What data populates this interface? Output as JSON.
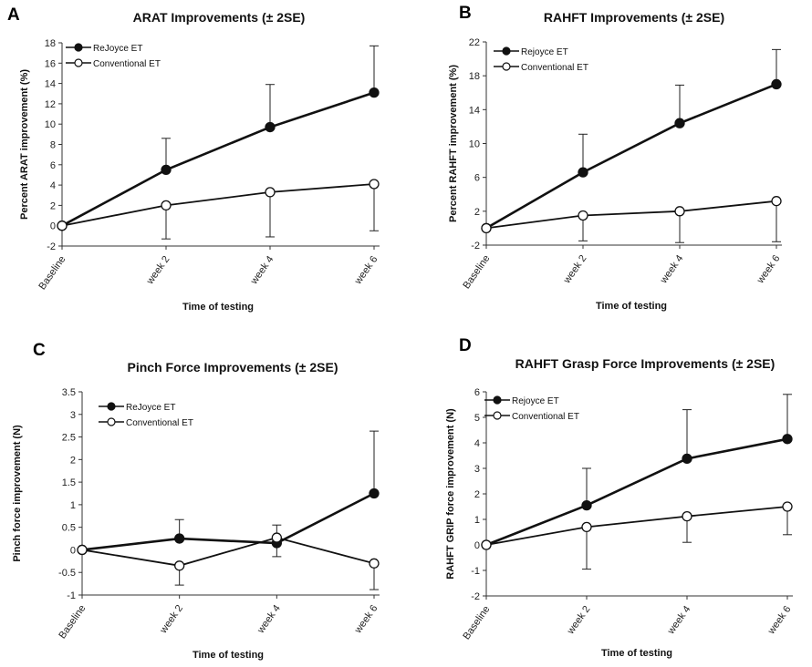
{
  "chart_data": [
    {
      "panel": "A",
      "type": "line",
      "title": "ARAT Improvements (± 2SE)",
      "xlabel": "Time of testing",
      "ylabel": "Percent ARAT improvement (%)",
      "categories": [
        "Baseline",
        "week 2",
        "week 4",
        "week 6"
      ],
      "ylim": [
        -2,
        18
      ],
      "yticks": [
        -2,
        0,
        2,
        4,
        6,
        8,
        10,
        12,
        14,
        16,
        18
      ],
      "legend_position": "top-left",
      "series": [
        {
          "name": "ReJoyce ET",
          "marker": "filled",
          "values": [
            0,
            5.5,
            9.7,
            13.1
          ],
          "err_upper": [
            null,
            8.6,
            13.9,
            17.7
          ],
          "err_lower": [
            null,
            null,
            null,
            null
          ]
        },
        {
          "name": "Conventional ET",
          "marker": "open",
          "values": [
            0,
            2.0,
            3.3,
            4.1
          ],
          "err_upper": [
            null,
            null,
            null,
            null
          ],
          "err_lower": [
            null,
            -1.3,
            -1.1,
            -0.5
          ]
        }
      ]
    },
    {
      "panel": "B",
      "type": "line",
      "title": "RAHFT Improvements (± 2SE)",
      "xlabel": "Time of testing",
      "ylabel": "Percent RAHFT improvement (%)",
      "categories": [
        "Baseline",
        "week 2",
        "week 4",
        "week 6"
      ],
      "ylim": [
        -2,
        22
      ],
      "yticks": [
        -2,
        2,
        6,
        10,
        14,
        18,
        22
      ],
      "legend_position": "top-left",
      "series": [
        {
          "name": "Rejoyce ET",
          "marker": "filled",
          "values": [
            0,
            6.6,
            12.4,
            17.0
          ],
          "err_upper": [
            null,
            11.1,
            16.9,
            21.1
          ],
          "err_lower": [
            null,
            null,
            null,
            null
          ]
        },
        {
          "name": "Conventional ET",
          "marker": "open",
          "values": [
            0,
            1.5,
            2.0,
            3.2
          ],
          "err_upper": [
            null,
            null,
            null,
            null
          ],
          "err_lower": [
            null,
            -1.5,
            -1.7,
            -1.6
          ]
        }
      ]
    },
    {
      "panel": "C",
      "type": "line",
      "title": "Pinch Force Improvements (± 2SE)",
      "xlabel": "Time of testing",
      "ylabel": "Pinch force improvement (N)",
      "categories": [
        "Baseline",
        "week 2",
        "week 4",
        "week 6"
      ],
      "ylim": [
        -1,
        3.5
      ],
      "yticks": [
        -1,
        -0.5,
        0,
        0.5,
        1,
        1.5,
        2,
        2.5,
        3,
        3.5
      ],
      "legend_position": "top-left",
      "series": [
        {
          "name": "ReJoyce ET",
          "marker": "filled",
          "values": [
            0,
            0.25,
            0.15,
            1.25
          ],
          "err_upper": [
            null,
            0.67,
            null,
            2.63
          ],
          "err_lower": [
            null,
            null,
            -0.15,
            null
          ]
        },
        {
          "name": "Conventional ET",
          "marker": "open",
          "values": [
            0,
            -0.35,
            0.27,
            -0.3
          ],
          "err_upper": [
            null,
            null,
            0.55,
            null
          ],
          "err_lower": [
            null,
            -0.78,
            null,
            -0.88
          ]
        }
      ]
    },
    {
      "panel": "D",
      "type": "line",
      "title": "RAHFT Grasp Force Improvements (± 2SE)",
      "xlabel": "Time of testing",
      "ylabel": "RAHFT GRIP force improvement (N)",
      "categories": [
        "Baseline",
        "week 2",
        "week 4",
        "week 6"
      ],
      "ylim": [
        -2,
        6
      ],
      "yticks": [
        -2,
        -1,
        0,
        1,
        2,
        3,
        4,
        5,
        6
      ],
      "legend_position": "top-left",
      "series": [
        {
          "name": "Rejoyce ET",
          "marker": "filled",
          "values": [
            0,
            1.55,
            3.38,
            4.15
          ],
          "err_upper": [
            null,
            3.0,
            5.3,
            5.9
          ],
          "err_lower": [
            null,
            null,
            null,
            null
          ]
        },
        {
          "name": "Conventional ET",
          "marker": "open",
          "values": [
            0,
            0.7,
            1.12,
            1.5
          ],
          "err_upper": [
            null,
            null,
            null,
            null
          ],
          "err_lower": [
            null,
            -0.95,
            0.1,
            0.4
          ]
        }
      ]
    }
  ],
  "panel_letters": [
    "A",
    "B",
    "C",
    "D"
  ],
  "colors": {
    "line": "#111111",
    "open_marker_fill": "#ffffff",
    "filled_marker": "#111111"
  }
}
